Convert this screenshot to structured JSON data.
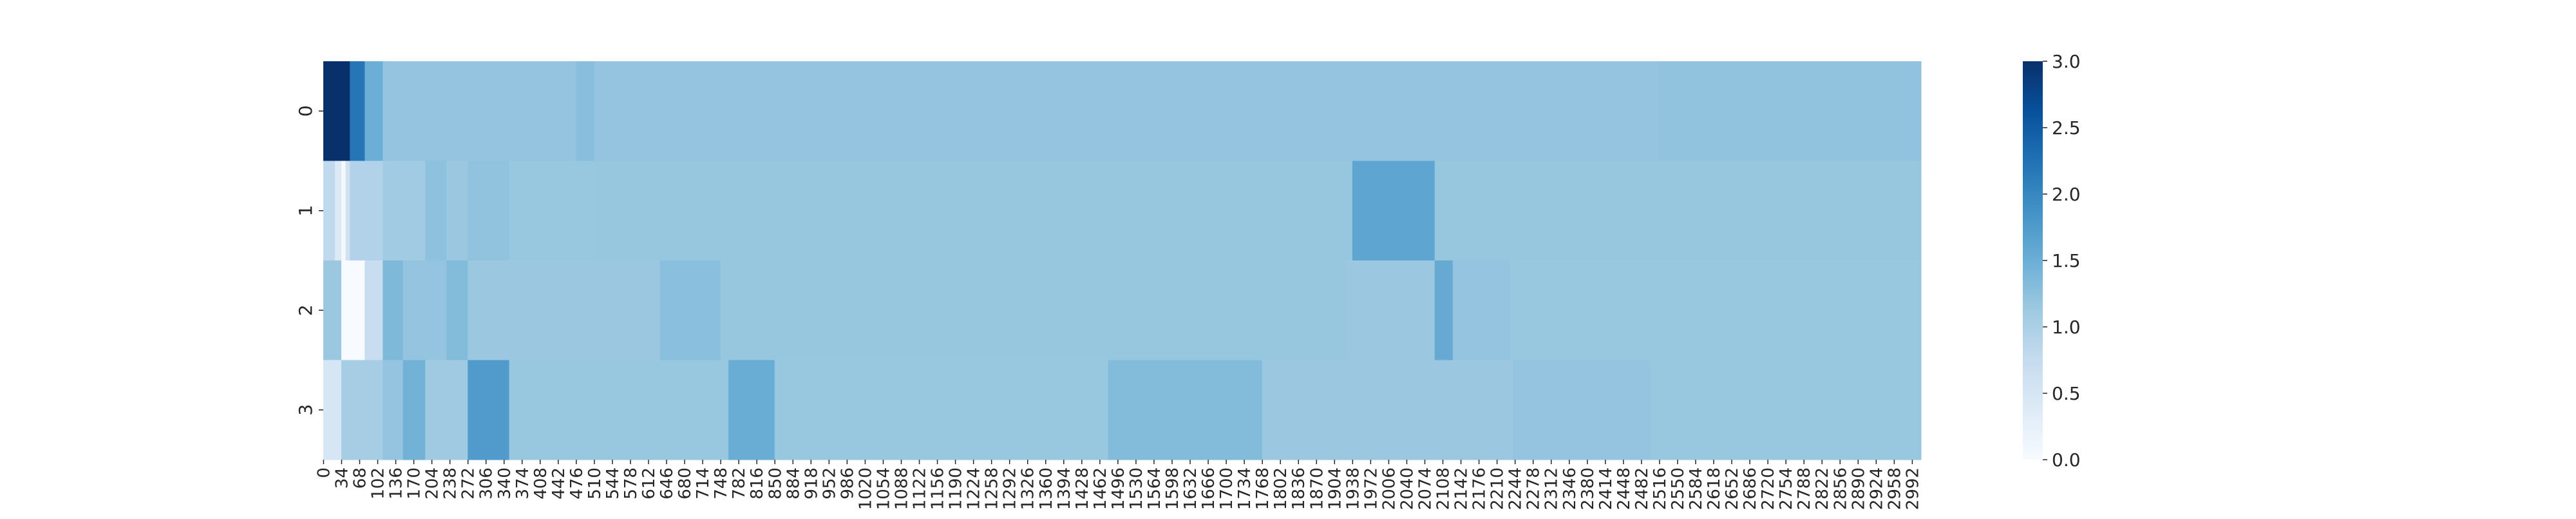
{
  "chart_data": {
    "type": "heatmap",
    "title": "",
    "xlabel": "",
    "ylabel": "",
    "x_ticks": [
      "0",
      "34",
      "68",
      "102",
      "136",
      "170",
      "204",
      "238",
      "272",
      "306",
      "340",
      "374",
      "408",
      "442",
      "476",
      "510",
      "544",
      "578",
      "612",
      "646",
      "680",
      "714",
      "748",
      "782",
      "816",
      "850",
      "884",
      "918",
      "952",
      "986",
      "1020",
      "1054",
      "1088",
      "1122",
      "1156",
      "1190",
      "1224",
      "1258",
      "1292",
      "1326",
      "1360",
      "1394",
      "1428",
      "1462",
      "1496",
      "1530",
      "1564",
      "1598",
      "1632",
      "1666",
      "1700",
      "1734",
      "1768",
      "1802",
      "1836",
      "1870",
      "1904",
      "1938",
      "1972",
      "2006",
      "2040",
      "2074",
      "2108",
      "2142",
      "2176",
      "2210",
      "2244",
      "2278",
      "2312",
      "2346",
      "2380",
      "2414",
      "2448",
      "2482",
      "2516",
      "2550",
      "2584",
      "2618",
      "2652",
      "2686",
      "2720",
      "2754",
      "2788",
      "2822",
      "2856",
      "2890",
      "2924",
      "2958",
      "2992"
    ],
    "x_range": [
      0,
      3009
    ],
    "rows": [
      "0",
      "1",
      "2",
      "3"
    ],
    "default_value": 1.18,
    "segments": [
      [
        {
          "x0": 0,
          "x1": 50,
          "v": 3.0
        },
        {
          "x0": 50,
          "x1": 78,
          "v": 2.2
        },
        {
          "x0": 78,
          "x1": 112,
          "v": 1.5
        },
        {
          "x0": 112,
          "x1": 476,
          "v": 1.2
        },
        {
          "x0": 476,
          "x1": 510,
          "v": 1.28
        },
        {
          "x0": 510,
          "x1": 2516,
          "v": 1.2
        },
        {
          "x0": 2516,
          "x1": 3009,
          "v": 1.22
        }
      ],
      [
        {
          "x0": 0,
          "x1": 22,
          "v": 0.8
        },
        {
          "x0": 22,
          "x1": 34,
          "v": 0.4
        },
        {
          "x0": 34,
          "x1": 42,
          "v": 0.05
        },
        {
          "x0": 42,
          "x1": 50,
          "v": 0.6
        },
        {
          "x0": 50,
          "x1": 112,
          "v": 0.95
        },
        {
          "x0": 112,
          "x1": 192,
          "v": 1.1
        },
        {
          "x0": 192,
          "x1": 232,
          "v": 1.25
        },
        {
          "x0": 232,
          "x1": 272,
          "v": 1.15
        },
        {
          "x0": 272,
          "x1": 350,
          "v": 1.22
        },
        {
          "x0": 350,
          "x1": 510,
          "v": 1.17
        },
        {
          "x0": 510,
          "x1": 1938,
          "v": 1.18
        },
        {
          "x0": 1938,
          "x1": 2093,
          "v": 1.62
        },
        {
          "x0": 2093,
          "x1": 3009,
          "v": 1.18
        }
      ],
      [
        {
          "x0": 0,
          "x1": 34,
          "v": 1.15
        },
        {
          "x0": 34,
          "x1": 78,
          "v": 0.0
        },
        {
          "x0": 78,
          "x1": 112,
          "v": 0.7
        },
        {
          "x0": 112,
          "x1": 150,
          "v": 1.35
        },
        {
          "x0": 150,
          "x1": 232,
          "v": 1.2
        },
        {
          "x0": 232,
          "x1": 272,
          "v": 1.32
        },
        {
          "x0": 272,
          "x1": 634,
          "v": 1.15
        },
        {
          "x0": 634,
          "x1": 748,
          "v": 1.27
        },
        {
          "x0": 748,
          "x1": 1925,
          "v": 1.18
        },
        {
          "x0": 1925,
          "x1": 2093,
          "v": 1.15
        },
        {
          "x0": 2093,
          "x1": 2127,
          "v": 1.55
        },
        {
          "x0": 2127,
          "x1": 2235,
          "v": 1.2
        },
        {
          "x0": 2235,
          "x1": 3009,
          "v": 1.17
        }
      ],
      [
        {
          "x0": 0,
          "x1": 34,
          "v": 0.5
        },
        {
          "x0": 34,
          "x1": 112,
          "v": 1.05
        },
        {
          "x0": 112,
          "x1": 150,
          "v": 1.2
        },
        {
          "x0": 150,
          "x1": 192,
          "v": 1.45
        },
        {
          "x0": 192,
          "x1": 272,
          "v": 1.12
        },
        {
          "x0": 272,
          "x1": 350,
          "v": 1.75
        },
        {
          "x0": 350,
          "x1": 763,
          "v": 1.17
        },
        {
          "x0": 763,
          "x1": 850,
          "v": 1.52
        },
        {
          "x0": 850,
          "x1": 1478,
          "v": 1.17
        },
        {
          "x0": 1478,
          "x1": 1768,
          "v": 1.32
        },
        {
          "x0": 1768,
          "x1": 2240,
          "v": 1.15
        },
        {
          "x0": 2240,
          "x1": 2500,
          "v": 1.2
        },
        {
          "x0": 2500,
          "x1": 3009,
          "v": 1.17
        }
      ]
    ],
    "colorbar": {
      "cmap": "Blues",
      "range": [
        0.0,
        3.0
      ],
      "ticks": [
        "0.0",
        "0.5",
        "1.0",
        "1.5",
        "2.0",
        "2.5",
        "3.0"
      ]
    },
    "grid": false
  }
}
